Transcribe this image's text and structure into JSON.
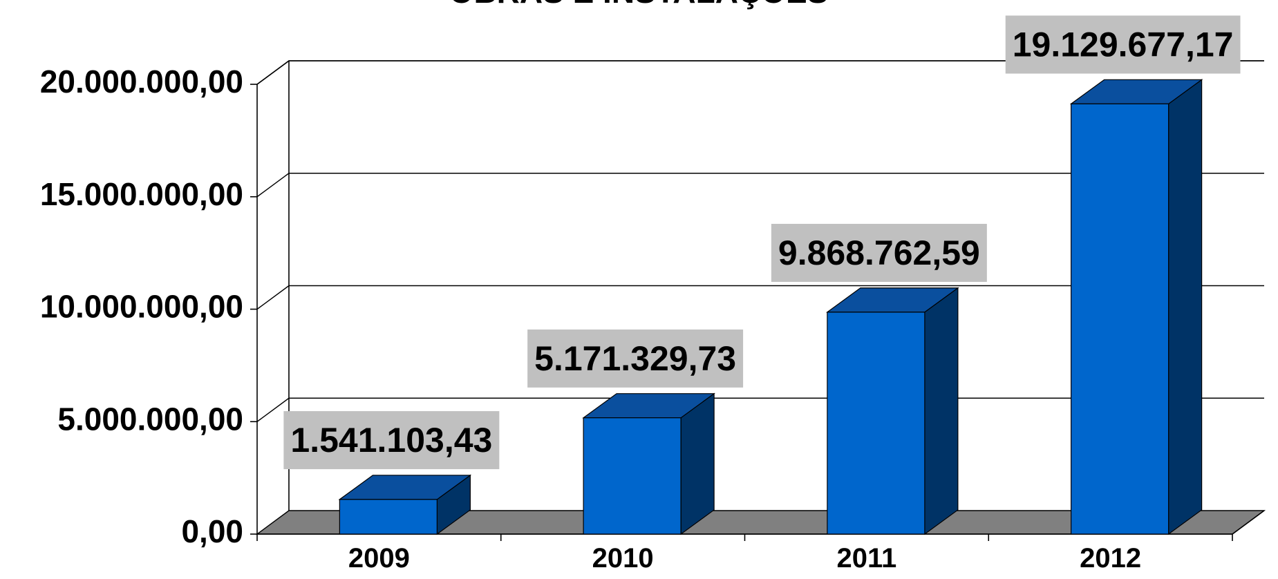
{
  "chart_data": {
    "type": "bar",
    "title": "OBRAS E INSTALAÇÕES",
    "xlabel": "",
    "ylabel": "",
    "categories": [
      "2009",
      "2010",
      "2011",
      "2012"
    ],
    "values": [
      1541103.43,
      5171329.73,
      9868762.59,
      19129677.17
    ],
    "data_labels": [
      "1.541.103,43",
      "5.171.329,73",
      "9.868.762,59",
      "19.129.677,17"
    ],
    "ylim": [
      0,
      20000000
    ],
    "yticks": [
      0,
      5000000,
      10000000,
      15000000,
      20000000
    ],
    "ytick_labels": [
      "0,00",
      "5.000.000,00",
      "10.000.000,00",
      "15.000.000,00",
      "20.000.000,00"
    ],
    "grid": true,
    "style": "3d-column",
    "colors": {
      "bar_front": "#0066cc",
      "bar_top": "#0a4f9e",
      "bar_side": "#003366",
      "floor": "#808080",
      "label_box": "#c0c0c0"
    }
  }
}
